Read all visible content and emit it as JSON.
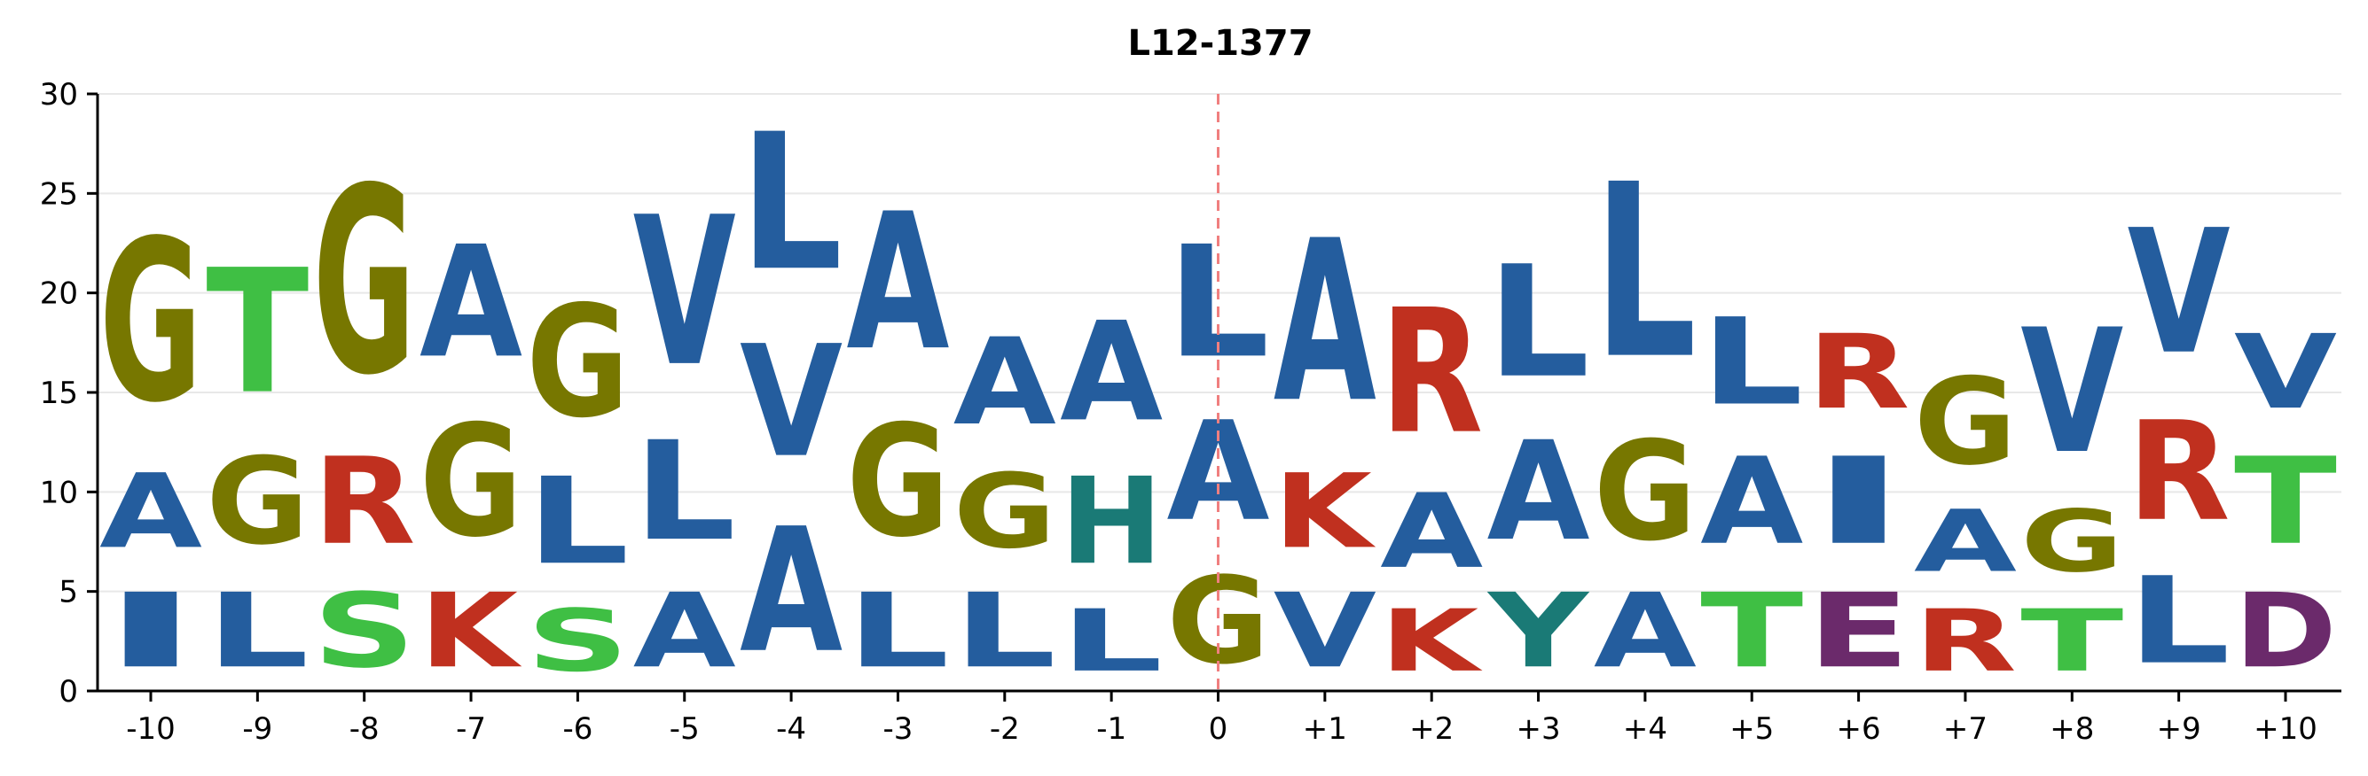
{
  "chart_data": {
    "type": "sequence-logo",
    "title": "L12-1377",
    "ylim": [
      0,
      30
    ],
    "yticks": [
      0,
      5,
      10,
      15,
      20,
      25,
      30
    ],
    "grid": "horizontal",
    "reference_line": {
      "position": "0",
      "style": "dashed",
      "color": "#f07f7f"
    },
    "colors": {
      "hydrophobic": "#245d9e",
      "G": "#777700",
      "polar": "#3fbf44",
      "basic": "#c0301f",
      "H": "#1a7a76",
      "acidic": "#6b2a6b"
    },
    "positions": [
      {
        "label": "-10",
        "stack": [
          {
            "aa": "I",
            "color": "#245d9e",
            "height": 6
          },
          {
            "aa": "A",
            "color": "#245d9e",
            "height": 6
          },
          {
            "aa": "G",
            "color": "#777700",
            "height": 13
          }
        ]
      },
      {
        "label": "-9",
        "stack": [
          {
            "aa": "L",
            "color": "#245d9e",
            "height": 6
          },
          {
            "aa": "G",
            "color": "#777700",
            "height": 7
          },
          {
            "aa": "T",
            "color": "#3fbf44",
            "height": 10
          }
        ]
      },
      {
        "label": "-8",
        "stack": [
          {
            "aa": "S",
            "color": "#3fbf44",
            "height": 6
          },
          {
            "aa": "R",
            "color": "#c0301f",
            "height": 7
          },
          {
            "aa": "G",
            "color": "#777700",
            "height": 15
          }
        ]
      },
      {
        "label": "-7",
        "stack": [
          {
            "aa": "K",
            "color": "#c0301f",
            "height": 6
          },
          {
            "aa": "G",
            "color": "#777700",
            "height": 9
          },
          {
            "aa": "A",
            "color": "#245d9e",
            "height": 9
          }
        ]
      },
      {
        "label": "-6",
        "stack": [
          {
            "aa": "S",
            "color": "#3fbf44",
            "height": 5
          },
          {
            "aa": "L",
            "color": "#245d9e",
            "height": 7
          },
          {
            "aa": "G",
            "color": "#777700",
            "height": 9
          }
        ]
      },
      {
        "label": "-5",
        "stack": [
          {
            "aa": "A",
            "color": "#245d9e",
            "height": 6
          },
          {
            "aa": "L",
            "color": "#245d9e",
            "height": 8
          },
          {
            "aa": "V",
            "color": "#245d9e",
            "height": 12
          }
        ]
      },
      {
        "label": "-4",
        "stack": [
          {
            "aa": "A",
            "color": "#245d9e",
            "height": 10
          },
          {
            "aa": "V",
            "color": "#245d9e",
            "height": 9
          },
          {
            "aa": "L",
            "color": "#245d9e",
            "height": 11
          }
        ]
      },
      {
        "label": "-3",
        "stack": [
          {
            "aa": "L",
            "color": "#245d9e",
            "height": 6
          },
          {
            "aa": "G",
            "color": "#777700",
            "height": 9
          },
          {
            "aa": "A",
            "color": "#245d9e",
            "height": 11
          }
        ]
      },
      {
        "label": "-2",
        "stack": [
          {
            "aa": "L",
            "color": "#245d9e",
            "height": 6
          },
          {
            "aa": "G",
            "color": "#777700",
            "height": 6
          },
          {
            "aa": "A",
            "color": "#245d9e",
            "height": 7
          }
        ]
      },
      {
        "label": "-1",
        "stack": [
          {
            "aa": "L",
            "color": "#245d9e",
            "height": 5
          },
          {
            "aa": "H",
            "color": "#1a7a76",
            "height": 7
          },
          {
            "aa": "A",
            "color": "#245d9e",
            "height": 8
          }
        ]
      },
      {
        "label": "0",
        "stack": [
          {
            "aa": "G",
            "color": "#777700",
            "height": 7
          },
          {
            "aa": "A",
            "color": "#245d9e",
            "height": 8
          },
          {
            "aa": "L",
            "color": "#245d9e",
            "height": 9
          }
        ]
      },
      {
        "label": "+1",
        "stack": [
          {
            "aa": "V",
            "color": "#245d9e",
            "height": 6
          },
          {
            "aa": "K",
            "color": "#c0301f",
            "height": 6
          },
          {
            "aa": "A",
            "color": "#245d9e",
            "height": 13
          }
        ]
      },
      {
        "label": "+2",
        "stack": [
          {
            "aa": "K",
            "color": "#c0301f",
            "height": 5
          },
          {
            "aa": "A",
            "color": "#245d9e",
            "height": 6
          },
          {
            "aa": "R",
            "color": "#c0301f",
            "height": 10
          }
        ]
      },
      {
        "label": "+3",
        "stack": [
          {
            "aa": "Y",
            "color": "#1a7a76",
            "height": 6
          },
          {
            "aa": "A",
            "color": "#245d9e",
            "height": 8
          },
          {
            "aa": "L",
            "color": "#245d9e",
            "height": 9
          }
        ]
      },
      {
        "label": "+4",
        "stack": [
          {
            "aa": "A",
            "color": "#245d9e",
            "height": 6
          },
          {
            "aa": "G",
            "color": "#777700",
            "height": 8
          },
          {
            "aa": "L",
            "color": "#245d9e",
            "height": 14
          }
        ]
      },
      {
        "label": "+5",
        "stack": [
          {
            "aa": "T",
            "color": "#3fbf44",
            "height": 6
          },
          {
            "aa": "A",
            "color": "#245d9e",
            "height": 7
          },
          {
            "aa": "L",
            "color": "#245d9e",
            "height": 7
          }
        ]
      },
      {
        "label": "+6",
        "stack": [
          {
            "aa": "E",
            "color": "#6b2a6b",
            "height": 6
          },
          {
            "aa": "I",
            "color": "#245d9e",
            "height": 7
          },
          {
            "aa": "R",
            "color": "#c0301f",
            "height": 6
          }
        ]
      },
      {
        "label": "+7",
        "stack": [
          {
            "aa": "R",
            "color": "#c0301f",
            "height": 5
          },
          {
            "aa": "A",
            "color": "#245d9e",
            "height": 5
          },
          {
            "aa": "G",
            "color": "#777700",
            "height": 7
          }
        ]
      },
      {
        "label": "+8",
        "stack": [
          {
            "aa": "T",
            "color": "#3fbf44",
            "height": 5
          },
          {
            "aa": "G",
            "color": "#777700",
            "height": 5
          },
          {
            "aa": "V",
            "color": "#245d9e",
            "height": 10
          }
        ]
      },
      {
        "label": "+9",
        "stack": [
          {
            "aa": "L",
            "color": "#245d9e",
            "height": 7
          },
          {
            "aa": "R",
            "color": "#c0301f",
            "height": 8
          },
          {
            "aa": "V",
            "color": "#245d9e",
            "height": 10
          }
        ]
      },
      {
        "label": "+10",
        "stack": [
          {
            "aa": "D",
            "color": "#6b2a6b",
            "height": 6
          },
          {
            "aa": "T",
            "color": "#3fbf44",
            "height": 7
          },
          {
            "aa": "V",
            "color": "#245d9e",
            "height": 6
          }
        ]
      }
    ]
  }
}
